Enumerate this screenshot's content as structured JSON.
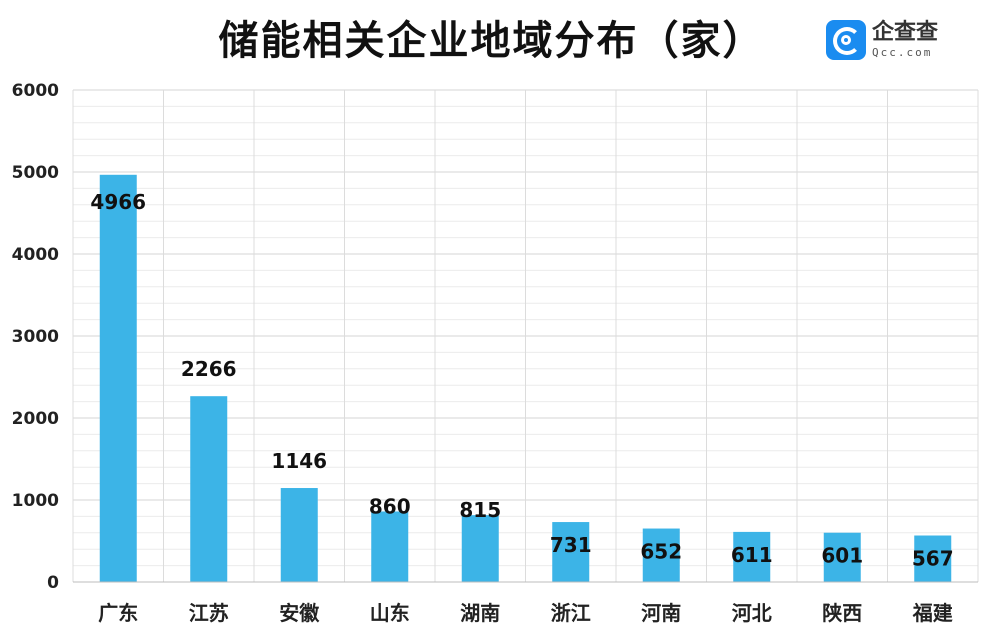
{
  "chart_data": {
    "type": "bar",
    "title": "储能相关企业地域分布（家）",
    "categories": [
      "广东",
      "江苏",
      "安徽",
      "山东",
      "湖南",
      "浙江",
      "河南",
      "河北",
      "陕西",
      "福建"
    ],
    "values": [
      4966,
      2266,
      1146,
      860,
      815,
      731,
      652,
      611,
      601,
      567
    ],
    "ylim": [
      0,
      6000
    ],
    "yticks": [
      0,
      1000,
      2000,
      3000,
      4000,
      5000,
      6000
    ],
    "grid": true,
    "bar_color": "#3cb4e7",
    "legend": "none"
  },
  "logo": {
    "name": "企查查",
    "domain": "Qcc.com",
    "icon": "qcc-logo-icon",
    "color": "#1a8cf0"
  }
}
